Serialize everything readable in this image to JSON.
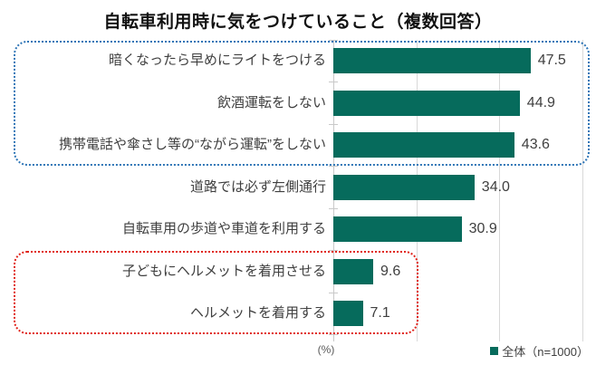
{
  "title": "自転車利用時に気をつけていること（複数回答）",
  "chart_data": {
    "type": "bar",
    "orientation": "horizontal",
    "title": "自転車利用時に気をつけていること（複数回答）",
    "categories": [
      "暗くなったら早めにライトをつける",
      "飲酒運転をしない",
      "携帯電話や傘さし等の“ながら運転”をしない",
      "道路では必ず左側通行",
      "自転車用の歩道や車道を利用する",
      "子どもにヘルメットを着用させる",
      "ヘルメットを着用する"
    ],
    "series": [
      {
        "name": "全体（n=1000）",
        "values": [
          47.5,
          44.9,
          43.6,
          34.0,
          30.9,
          9.6,
          7.1
        ]
      }
    ],
    "value_labels": [
      "47.5",
      "44.9",
      "43.6",
      "34.0",
      "30.9",
      "9.6",
      "7.1"
    ],
    "xlim": [
      0,
      60
    ],
    "gridlines": [
      20,
      40,
      60
    ],
    "grid_on": true,
    "unit_label": "(%)",
    "bar_color": "#066b5c",
    "legend_position": "bottom-right",
    "highlight_boxes": [
      {
        "name": "top3",
        "style": "dotted",
        "color": "#2e75b6",
        "category_indexes": [
          0,
          1,
          2
        ]
      },
      {
        "name": "helmet",
        "style": "dotted",
        "color": "#e0241c",
        "category_indexes": [
          5,
          6
        ]
      }
    ]
  },
  "legend": {
    "marker_color": "#066b5c",
    "label": "全体（n=1000）"
  },
  "axis": {
    "unit_label": "(%)"
  }
}
